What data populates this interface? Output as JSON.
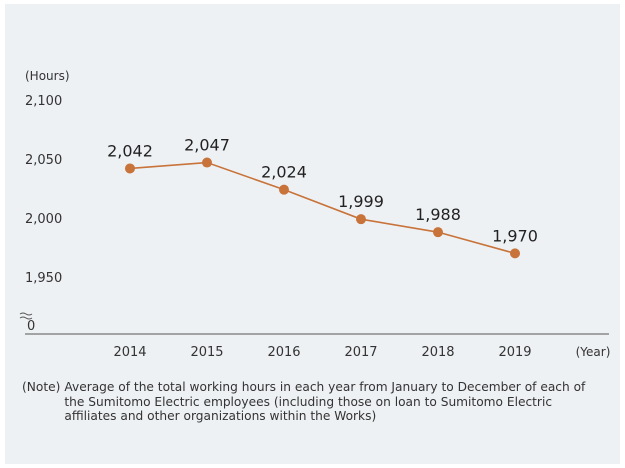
{
  "chart_data": {
    "type": "line",
    "ylabel": "(Hours)",
    "xlabel": "(Year)",
    "x": [
      "2014",
      "2015",
      "2016",
      "2017",
      "2018",
      "2019"
    ],
    "y": [
      2042,
      2047,
      2024,
      1999,
      1988,
      1970
    ],
    "data_labels": [
      "2,042",
      "2,047",
      "2,024",
      "1,999",
      "1,988",
      "1,970"
    ],
    "y_ticks": [
      1950,
      2000,
      2050,
      2100
    ],
    "y_tick_labels": [
      "1,950",
      "2,000",
      "2,050",
      "2,100"
    ],
    "y_break_label": "0",
    "ylim": [
      1950,
      2100
    ],
    "axis_break": true,
    "grid": false,
    "line_color": "#c8733a",
    "marker_color": "#c8733a"
  },
  "note": {
    "label": "(Note)",
    "text": "Average of the total working hours in each year from January to December of each of the Sumitomo Electric employees (including those on loan to Sumitomo Electric affiliates and other organizations within the Works)"
  }
}
